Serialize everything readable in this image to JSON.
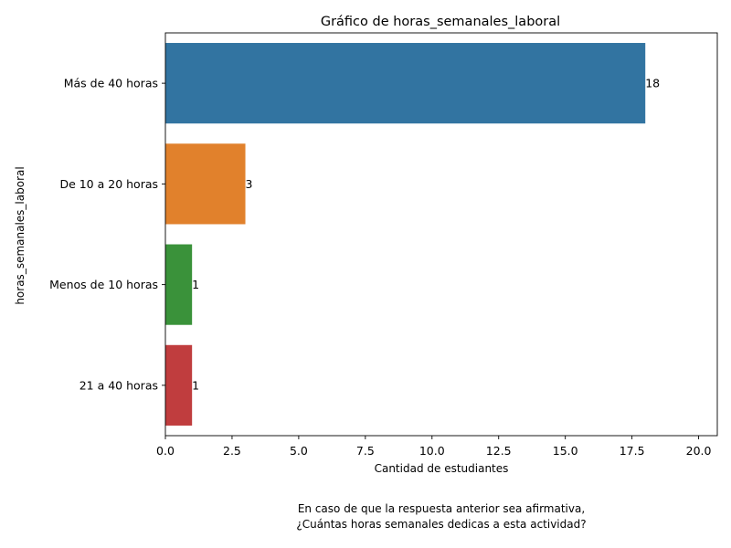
{
  "chart_data": {
    "type": "bar",
    "orientation": "horizontal",
    "title": "Gráfico de horas_semanales_laboral",
    "xlabel": "Cantidad de estudiantes",
    "ylabel": "horas_semanales_laboral",
    "categories": [
      "Más de 40 horas",
      "De 10 a 20 horas",
      "Menos de 10 horas",
      "21 a 40 horas"
    ],
    "values": [
      18,
      3,
      1,
      1
    ],
    "data_labels": [
      "18",
      "3",
      "1",
      "1"
    ],
    "colors": [
      "#3274a1",
      "#e1812c",
      "#3a923a",
      "#c03d3e"
    ],
    "xlim": [
      0,
      20.7
    ],
    "xticks": [
      0.0,
      2.5,
      5.0,
      7.5,
      10.0,
      12.5,
      15.0,
      17.5,
      20.0
    ],
    "xtick_labels": [
      "0.0",
      "2.5",
      "5.0",
      "7.5",
      "10.0",
      "12.5",
      "15.0",
      "17.5",
      "20.0"
    ],
    "grid": false,
    "caption_lines": [
      "En caso de que la respuesta anterior sea afirmativa,",
      "¿Cuántas horas semanales dedicas a esta actividad?"
    ]
  }
}
